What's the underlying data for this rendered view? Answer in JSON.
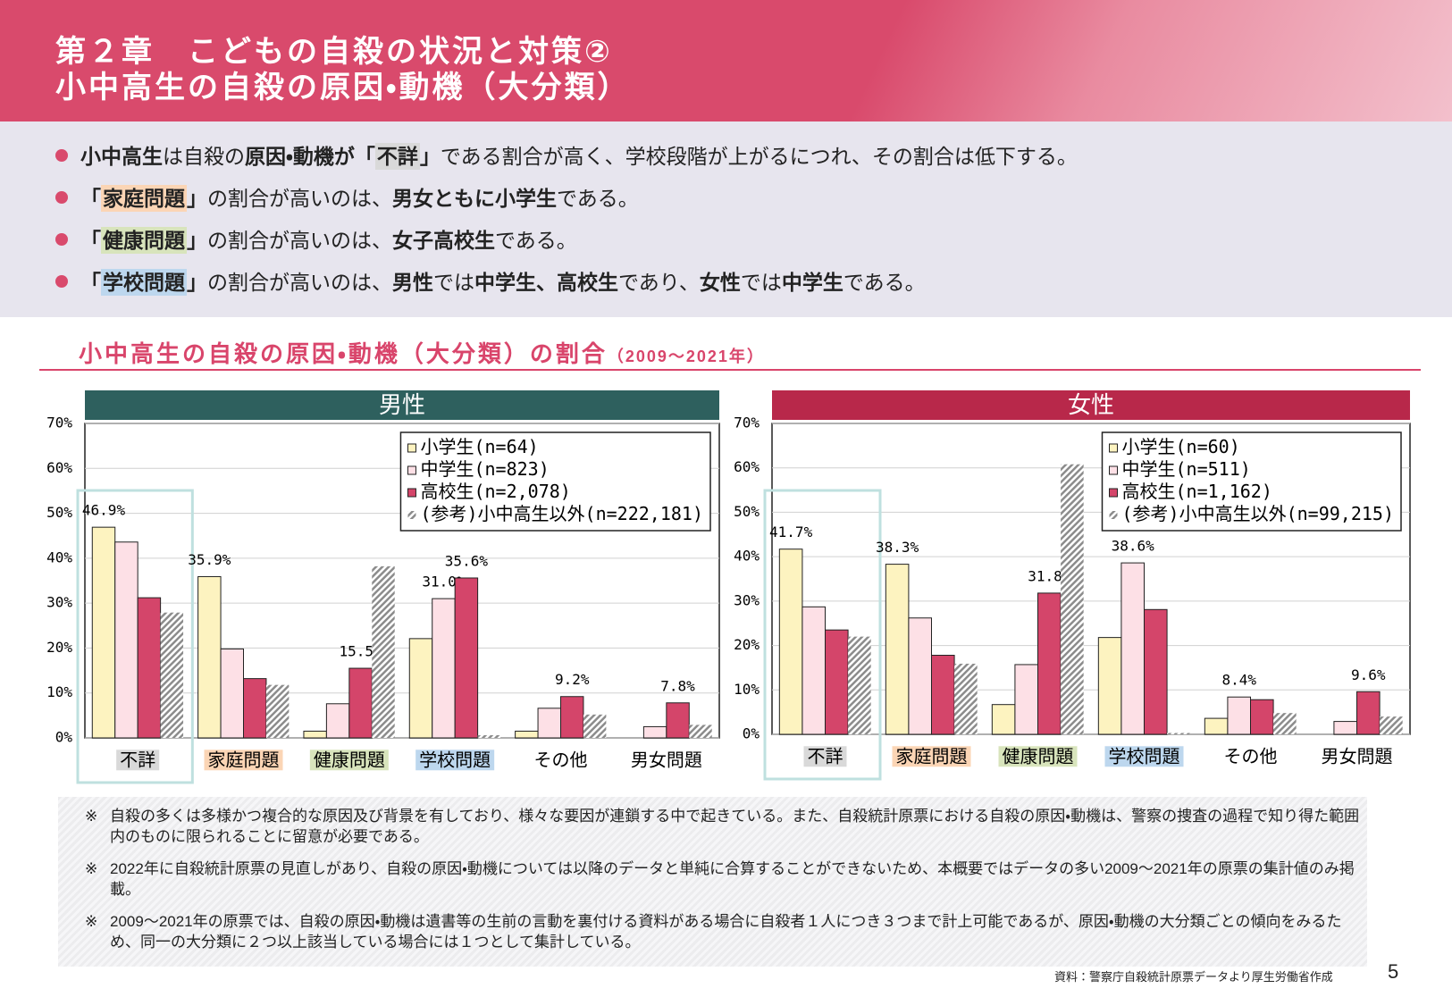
{
  "header": {
    "title": [
      "第２章　こどもの自殺の状況と対策②",
      "小中高生の自殺の原因・動機（大分類）"
    ]
  },
  "bullets": [
    [
      {
        "text": "小中高生",
        "bold": true
      },
      {
        "text": "は自殺の"
      },
      {
        "text": "原因・動機が「",
        "bold": true
      },
      {
        "text": "不詳",
        "bold": true,
        "highlight": "#d9d9d9"
      },
      {
        "text": "」",
        "bold": true
      },
      {
        "text": "である割合が高く、学校段階が上がるにつれ、その割合は低下する。"
      }
    ],
    [
      {
        "text": "「",
        "bold": true
      },
      {
        "text": "家庭問題",
        "bold": true,
        "highlight": "#fbd5b5"
      },
      {
        "text": "」",
        "bold": true
      },
      {
        "text": "の割合が高いのは、"
      },
      {
        "text": "男女ともに小学生",
        "bold": true
      },
      {
        "text": "である。"
      }
    ],
    [
      {
        "text": "「",
        "bold": true
      },
      {
        "text": "健康問題",
        "bold": true,
        "highlight": "#d8e4bc"
      },
      {
        "text": "」",
        "bold": true
      },
      {
        "text": "の割合が高いのは、"
      },
      {
        "text": "女子高校生",
        "bold": true
      },
      {
        "text": "である。"
      }
    ],
    [
      {
        "text": "「",
        "bold": true
      },
      {
        "text": "学校問題",
        "bold": true,
        "highlight": "#bdd7ee"
      },
      {
        "text": "」",
        "bold": true
      },
      {
        "text": "の割合が高いのは、"
      },
      {
        "text": "男性",
        "bold": true
      },
      {
        "text": "では"
      },
      {
        "text": "中学生、高校生",
        "bold": true
      },
      {
        "text": "であり、"
      },
      {
        "text": "女性",
        "bold": true
      },
      {
        "text": "では"
      },
      {
        "text": "中学生",
        "bold": true
      },
      {
        "text": "である。"
      }
    ]
  ],
  "section": {
    "title": "小中高生の自殺の原因・動機（大分類）の割合",
    "period": "（2009～2021年）"
  },
  "chart_data": [
    {
      "type": "bar",
      "title": "男性",
      "banner_color": "#2e605e",
      "categories": [
        "不詳",
        "家庭問題",
        "健康問題",
        "学校問題",
        "その他",
        "男女問題"
      ],
      "category_colors": [
        "#d9d9d9",
        "#fbd5b5",
        "#d8e4bc",
        "#bdd7ee",
        null,
        null
      ],
      "series": [
        {
          "name": "小学生(n=64)",
          "color": "#fdf3c0",
          "values": [
            46.9,
            35.9,
            1.5,
            22.1,
            1.5,
            0
          ],
          "value_labels": [
            "46.9%",
            "35.9%",
            null,
            null,
            null,
            null
          ]
        },
        {
          "name": "中学生(n=823)",
          "color": "#fde0e6",
          "values": [
            43.6,
            19.8,
            7.6,
            31.0,
            6.6,
            2.5
          ],
          "value_labels": [
            null,
            null,
            null,
            "31.0%",
            null,
            null
          ]
        },
        {
          "name": "高校生(n=2,078)",
          "color": "#d4456a",
          "values": [
            31.2,
            13.2,
            15.5,
            35.6,
            9.2,
            7.8
          ],
          "value_labels": [
            null,
            null,
            "15.5%",
            "35.6%",
            "9.2%",
            "7.8%"
          ]
        },
        {
          "name": "(参考)小中高生以外(n=222,181)",
          "color": "#8c8c8c",
          "hatch": true,
          "values": [
            27.9,
            11.8,
            38.2,
            0.6,
            5.2,
            2.9
          ]
        }
      ],
      "ylim": [
        0,
        70
      ],
      "yticks": [
        {
          "value": 0,
          "label": "0%"
        },
        {
          "value": 10,
          "label": "10%"
        },
        {
          "value": 20,
          "label": "20%"
        },
        {
          "value": 30,
          "label": "30%"
        },
        {
          "value": 40,
          "label": "40%"
        },
        {
          "value": 50,
          "label": "50%"
        },
        {
          "value": 60,
          "label": "60%"
        },
        {
          "value": 70,
          "label": "70%"
        }
      ],
      "grid": true,
      "legend": "upper right"
    },
    {
      "type": "bar",
      "title": "女性",
      "banner_color": "#b8284a",
      "categories": [
        "不詳",
        "家庭問題",
        "健康問題",
        "学校問題",
        "その他",
        "男女問題"
      ],
      "category_colors": [
        "#d9d9d9",
        "#fbd5b5",
        "#d8e4bc",
        "#bdd7ee",
        null,
        null
      ],
      "series": [
        {
          "name": "小学生(n=60)",
          "color": "#fdf3c0",
          "values": [
            41.7,
            38.3,
            6.7,
            21.8,
            3.6,
            0
          ],
          "value_labels": [
            "41.7%",
            "38.3%",
            null,
            null,
            null,
            null
          ]
        },
        {
          "name": "中学生(n=511)",
          "color": "#fde0e6",
          "values": [
            28.7,
            26.2,
            15.7,
            38.6,
            8.4,
            2.9
          ],
          "value_labels": [
            null,
            null,
            null,
            "38.6%",
            "8.4%",
            null
          ]
        },
        {
          "name": "高校生(n=1,162)",
          "color": "#d4456a",
          "values": [
            23.5,
            17.8,
            31.8,
            28.1,
            7.8,
            9.6
          ],
          "value_labels": [
            null,
            null,
            "31.8%",
            null,
            null,
            "9.6%"
          ]
        },
        {
          "name": "(参考)小中高生以外(n=99,215)",
          "color": "#8c8c8c",
          "hatch": true,
          "values": [
            22.0,
            15.9,
            60.8,
            0.3,
            4.8,
            4.0
          ]
        }
      ],
      "ylim": [
        0,
        70
      ],
      "yticks": [
        {
          "value": 0,
          "label": "0%"
        },
        {
          "value": 10,
          "label": "10%"
        },
        {
          "value": 20,
          "label": "20%"
        },
        {
          "value": 30,
          "label": "30%"
        },
        {
          "value": 40,
          "label": "40%"
        },
        {
          "value": 50,
          "label": "50%"
        },
        {
          "value": 60,
          "label": "60%"
        },
        {
          "value": 70,
          "label": "70%"
        }
      ],
      "grid": true,
      "legend": "upper right"
    }
  ],
  "notes": [
    {
      "symbol": "※",
      "text": "自殺の多くは多様かつ複合的な原因及び背景を有しており、様々な要因が連鎖する中で起きている。また、自殺統計原票における自殺の原因・動機は、警察の捜査の過程で知り得た範囲内のものに限られることに留意が必要である。"
    },
    {
      "symbol": "※",
      "text": "2022年に自殺統計原票の見直しがあり、自殺の原因・動機については以降のデータと単純に合算することができないため、本概要ではデータの多い2009～2021年の原票の集計値のみ掲載。"
    },
    {
      "symbol": "※",
      "text": "2009～2021年の原票では、自殺の原因・動機は遺書等の生前の言動を裏付ける資料がある場合に自殺者１人につき３つまで計上可能であるが、原因・動機の大分類ごとの傾向をみるため、同一の大分類に２つ以上該当している場合には１つとして集計している。"
    }
  ],
  "source": "資料：警察庁自殺統計原票データより厚生労働省作成",
  "page_number": "5"
}
